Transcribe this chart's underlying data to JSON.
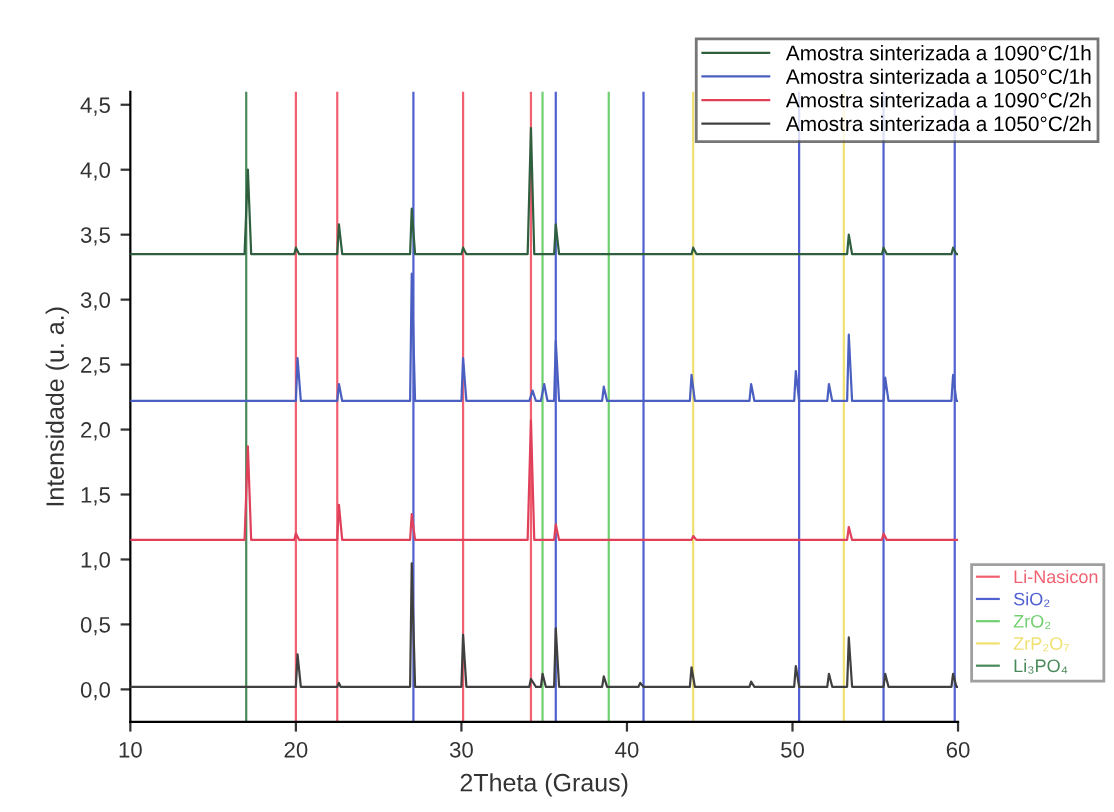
{
  "chart_data": {
    "type": "line",
    "xlabel": "2Theta (Graus)",
    "ylabel": "Intensidade (u. a.)",
    "xlim": [
      10,
      60
    ],
    "ylim": [
      -0.25,
      4.6
    ],
    "xticks": [
      10,
      20,
      30,
      40,
      50,
      60
    ],
    "yticks": [
      {
        "value": 0,
        "label": "0,0"
      },
      {
        "value": 0.5,
        "label": "0,5"
      },
      {
        "value": 1,
        "label": "1,0"
      },
      {
        "value": 1.5,
        "label": "1,5"
      },
      {
        "value": 2,
        "label": "2,0"
      },
      {
        "value": 2.5,
        "label": "2,5"
      },
      {
        "value": 3,
        "label": "3,0"
      },
      {
        "value": 3.5,
        "label": "3,5"
      },
      {
        "value": 4,
        "label": "4,0"
      },
      {
        "value": 4.5,
        "label": "4,5"
      }
    ],
    "legend": "top right",
    "grid": false,
    "marker": "none",
    "line_style": "solid",
    "series": [
      {
        "name": "Amostra sinterizada a 1090°C/1h",
        "color": "#2f5f3f",
        "x": [
          10,
          16.9,
          17.1,
          17.3,
          19.9,
          20.0,
          20.2,
          22.5,
          22.6,
          22.8,
          26.9,
          27.0,
          27.2,
          30.0,
          30.1,
          30.3,
          34.0,
          34.2,
          34.4,
          35.6,
          35.7,
          35.9,
          43.9,
          44.0,
          44.2,
          53.3,
          53.4,
          53.6,
          55.4,
          55.5,
          55.7,
          59.6,
          59.7,
          59.9,
          60
        ],
        "values": [
          3.35,
          3.35,
          4.0,
          3.35,
          3.35,
          3.4,
          3.35,
          3.35,
          3.58,
          3.35,
          3.35,
          3.7,
          3.35,
          3.35,
          3.4,
          3.35,
          3.35,
          4.32,
          3.35,
          3.35,
          3.58,
          3.35,
          3.35,
          3.4,
          3.35,
          3.35,
          3.5,
          3.35,
          3.35,
          3.4,
          3.35,
          3.35,
          3.4,
          3.35,
          3.35
        ]
      },
      {
        "name": "Amostra sinterizada a 1050°C/1h",
        "color": "#4a5fc0",
        "x": [
          10,
          20.0,
          20.1,
          20.3,
          22.5,
          22.6,
          22.8,
          26.9,
          27.0,
          27.2,
          30.0,
          30.1,
          30.3,
          34.1,
          34.3,
          34.5,
          34.8,
          35.0,
          35.2,
          35.6,
          35.7,
          35.9,
          38.5,
          38.6,
          38.8,
          43.8,
          43.9,
          44.1,
          47.4,
          47.5,
          47.7,
          50.1,
          50.2,
          50.4,
          52.1,
          52.2,
          52.4,
          53.3,
          53.4,
          53.6,
          55.5,
          55.6,
          55.8,
          59.6,
          59.7,
          59.9,
          60
        ],
        "values": [
          2.22,
          2.22,
          2.55,
          2.22,
          2.22,
          2.35,
          2.22,
          2.22,
          3.2,
          2.22,
          2.22,
          2.55,
          2.22,
          2.22,
          2.3,
          2.22,
          2.22,
          2.35,
          2.22,
          2.22,
          2.68,
          2.22,
          2.22,
          2.33,
          2.22,
          2.22,
          2.42,
          2.22,
          2.22,
          2.35,
          2.22,
          2.22,
          2.45,
          2.22,
          2.22,
          2.35,
          2.22,
          2.22,
          2.73,
          2.22,
          2.22,
          2.4,
          2.22,
          2.22,
          2.42,
          2.22,
          2.22
        ]
      },
      {
        "name": "Amostra sinterizada a 1090°C/2h",
        "color": "#e0405a",
        "x": [
          10,
          16.9,
          17.1,
          17.3,
          19.9,
          20.0,
          20.2,
          22.5,
          22.6,
          22.8,
          26.9,
          27.0,
          27.2,
          34.0,
          34.2,
          34.4,
          35.6,
          35.7,
          35.9,
          43.9,
          44.0,
          44.2,
          53.3,
          53.4,
          53.6,
          55.4,
          55.5,
          55.7,
          60
        ],
        "values": [
          1.15,
          1.15,
          1.87,
          1.15,
          1.15,
          1.2,
          1.15,
          1.15,
          1.42,
          1.15,
          1.15,
          1.35,
          1.15,
          1.15,
          2.07,
          1.15,
          1.15,
          1.27,
          1.15,
          1.15,
          1.18,
          1.15,
          1.15,
          1.25,
          1.15,
          1.15,
          1.2,
          1.15,
          1.15
        ]
      },
      {
        "name": "Amostra sinterizada a 1050°C/2h",
        "color": "#404040",
        "x": [
          10,
          20.0,
          20.1,
          20.3,
          22.5,
          22.6,
          22.7,
          26.9,
          27.0,
          27.2,
          30.0,
          30.1,
          30.3,
          34.1,
          34.2,
          34.5,
          34.8,
          34.9,
          35.1,
          35.6,
          35.7,
          35.9,
          38.5,
          38.6,
          38.8,
          40.7,
          40.8,
          41.0,
          43.8,
          43.9,
          44.1,
          47.4,
          47.5,
          47.7,
          50.1,
          50.2,
          50.4,
          52.1,
          52.2,
          52.4,
          53.3,
          53.4,
          53.6,
          55.5,
          55.6,
          55.8,
          59.6,
          59.7,
          59.9,
          60
        ],
        "values": [
          0.02,
          0.02,
          0.27,
          0.02,
          0.02,
          0.05,
          0.02,
          0.02,
          0.97,
          0.02,
          0.02,
          0.42,
          0.02,
          0.02,
          0.08,
          0.02,
          0.02,
          0.12,
          0.02,
          0.02,
          0.47,
          0.02,
          0.02,
          0.1,
          0.02,
          0.02,
          0.05,
          0.02,
          0.02,
          0.17,
          0.02,
          0.02,
          0.06,
          0.02,
          0.02,
          0.18,
          0.02,
          0.02,
          0.12,
          0.02,
          0.02,
          0.4,
          0.02,
          0.02,
          0.12,
          0.02,
          0.02,
          0.12,
          0.02,
          0.02
        ]
      }
    ],
    "ref_lines": [
      {
        "axis": "x",
        "value": 20.0,
        "label": "Li-Nasicon",
        "color": "#f06070"
      },
      {
        "axis": "x",
        "value": 22.5,
        "color": "#f06070"
      },
      {
        "axis": "x",
        "value": 30.1,
        "color": "#f06070"
      },
      {
        "axis": "x",
        "value": 34.2,
        "color": "#f06070"
      },
      {
        "axis": "x",
        "value": 27.1,
        "label": "SiO₂",
        "color": "#5060d0"
      },
      {
        "axis": "x",
        "value": 35.7,
        "color": "#5060d0"
      },
      {
        "axis": "x",
        "value": 41.0,
        "color": "#5060d0"
      },
      {
        "axis": "x",
        "value": 50.4,
        "color": "#5060d0"
      },
      {
        "axis": "x",
        "value": 55.5,
        "color": "#5060d0"
      },
      {
        "axis": "x",
        "value": 59.8,
        "color": "#5060d0"
      },
      {
        "axis": "x",
        "value": 34.9,
        "label": "ZrO₂",
        "color": "#70d070"
      },
      {
        "axis": "x",
        "value": 38.9,
        "color": "#70d070"
      },
      {
        "axis": "x",
        "value": 44.0,
        "label": "ZrP₂O₇",
        "color": "#f0e070"
      },
      {
        "axis": "x",
        "value": 53.1,
        "color": "#f0e070"
      },
      {
        "axis": "x",
        "value": 17.0,
        "label": "Li₃PO₄",
        "color": "#4a8a5a"
      }
    ]
  }
}
